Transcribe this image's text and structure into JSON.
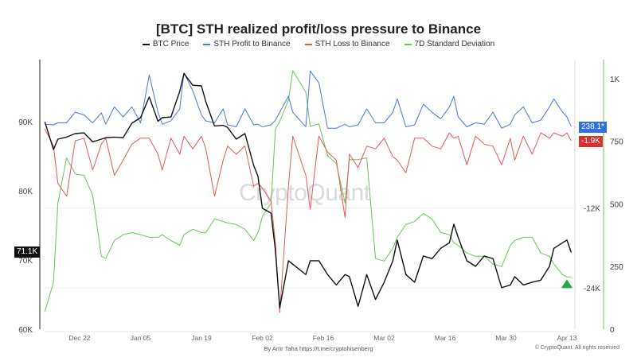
{
  "chart_data": {
    "type": "line",
    "title": "[BTC] STH realized profit/loss pressure to Binance",
    "legend_position": "top",
    "x": [
      "2024-12-14",
      "2024-12-16",
      "2024-12-17",
      "2024-12-19",
      "2024-12-21",
      "2024-12-23",
      "2024-12-25",
      "2024-12-27",
      "2024-12-28",
      "2024-12-30",
      "2025-01-01",
      "2025-01-03",
      "2025-01-05",
      "2025-01-07",
      "2025-01-09",
      "2025-01-10",
      "2025-01-12",
      "2025-01-14",
      "2025-01-15",
      "2025-01-17",
      "2025-01-19",
      "2025-01-20",
      "2025-01-22",
      "2025-01-24",
      "2025-01-25",
      "2025-01-27",
      "2025-01-29",
      "2025-01-31",
      "2025-02-01",
      "2025-02-02",
      "2025-02-04",
      "2025-02-05",
      "2025-02-06",
      "2025-02-08",
      "2025-02-09",
      "2025-02-12",
      "2025-02-13",
      "2025-02-15",
      "2025-02-17",
      "2025-02-19",
      "2025-02-21",
      "2025-02-22",
      "2025-02-24",
      "2025-02-26",
      "2025-02-28",
      "2025-03-02",
      "2025-03-04",
      "2025-03-05",
      "2025-03-07",
      "2025-03-09",
      "2025-03-11",
      "2025-03-13",
      "2025-03-15",
      "2025-03-17",
      "2025-03-18",
      "2025-03-19",
      "2025-03-21",
      "2025-03-23",
      "2025-03-25",
      "2025-03-27",
      "2025-03-29",
      "2025-03-31",
      "2025-04-01",
      "2025-04-03",
      "2025-04-05",
      "2025-04-07",
      "2025-04-09",
      "2025-04-10",
      "2025-04-12",
      "2025-04-13",
      "2025-04-14"
    ],
    "x_ticks": [
      {
        "date": "2024-12-22",
        "label": "Dec 22"
      },
      {
        "date": "2025-01-05",
        "label": "Jan 05"
      },
      {
        "date": "2025-01-19",
        "label": "Jan 19"
      },
      {
        "date": "2025-02-02",
        "label": "Feb 02"
      },
      {
        "date": "2025-02-16",
        "label": "Feb 16"
      },
      {
        "date": "2025-03-02",
        "label": "Mar 02"
      },
      {
        "date": "2025-03-16",
        "label": "Mar 16"
      },
      {
        "date": "2025-03-30",
        "label": "Mar 30"
      },
      {
        "date": "2025-04-13",
        "label": "Apr 13"
      }
    ],
    "axes": {
      "price": {
        "side": "left",
        "ylim": [
          60000,
          99000
        ],
        "ticks": [
          {
            "v": 90000,
            "label": "90K"
          },
          {
            "v": 80000,
            "label": "80K"
          },
          {
            "v": 70000,
            "label": "70K"
          },
          {
            "v": 60000,
            "label": "60K"
          }
        ]
      },
      "flow": {
        "side": "right-inner",
        "ylim": [
          -30200,
          10300
        ],
        "ticks": [
          {
            "v": -12000,
            "label": "-12K"
          },
          {
            "v": -24000,
            "label": "-24K"
          }
        ]
      },
      "stddev": {
        "side": "right-outer",
        "ylim": [
          0,
          1076
        ],
        "ticks": [
          {
            "v": 1000,
            "label": "1K"
          },
          {
            "v": 750,
            "label": "750"
          },
          {
            "v": 500,
            "label": "500"
          },
          {
            "v": 250,
            "label": "250"
          },
          {
            "v": 0,
            "label": "0"
          }
        ]
      }
    },
    "grid": true,
    "series": [
      {
        "name": "BTC Price",
        "axis": "price",
        "color": "#111111",
        "last_label": "71.1K",
        "values": [
          90000,
          86000,
          87500,
          87800,
          88300,
          88400,
          87100,
          87500,
          87700,
          87800,
          87700,
          89800,
          90600,
          93600,
          90100,
          90600,
          90700,
          94400,
          97000,
          95300,
          95200,
          92900,
          89400,
          89500,
          89200,
          87500,
          88300,
          83700,
          82100,
          77500,
          76800,
          71400,
          63100,
          69900,
          69400,
          67900,
          69900,
          69900,
          67900,
          66400,
          67900,
          67600,
          63300,
          67900,
          64300,
          66800,
          69900,
          72900,
          67900,
          66800,
          70600,
          70200,
          71700,
          72500,
          75200,
          73300,
          69900,
          69100,
          70600,
          70200,
          66000,
          66400,
          67600,
          66400,
          66800,
          67100,
          69100,
          71700,
          72500,
          72900,
          71100
        ]
      },
      {
        "name": "STH Profit to Binance",
        "axis": "flow",
        "color": "#4a78d8",
        "last_label": "238.1*",
        "values": [
          600,
          500,
          800,
          800,
          2400,
          2000,
          800,
          2300,
          600,
          3200,
          1700,
          3200,
          800,
          8000,
          2400,
          600,
          1100,
          2900,
          8300,
          5600,
          2000,
          1100,
          800,
          2900,
          500,
          200,
          2900,
          500,
          600,
          200,
          500,
          1200,
          2400,
          4800,
          2400,
          200,
          8600,
          6800,
          0,
          0,
          600,
          200,
          500,
          2900,
          800,
          800,
          2400,
          4400,
          200,
          500,
          3600,
          2400,
          1400,
          3200,
          4800,
          1700,
          200,
          800,
          600,
          2400,
          0,
          600,
          2000,
          3200,
          800,
          1200,
          3200,
          4400,
          2400,
          1700,
          238.1
        ]
      },
      {
        "name": "STH Loss to Binance",
        "axis": "flow",
        "color": "#e05a5a",
        "last_label": "-1.9K",
        "values": [
          -100,
          -2700,
          -8300,
          -10200,
          -1900,
          -1500,
          -6300,
          -2400,
          -1500,
          -7100,
          -4800,
          -2400,
          -1500,
          -1500,
          -3900,
          -6300,
          -1500,
          -3900,
          -1200,
          -3100,
          -1200,
          -3100,
          -10200,
          -4800,
          -2700,
          -3900,
          -2700,
          -8700,
          -8300,
          -9000,
          -11000,
          -17300,
          -27700,
          -8700,
          -1200,
          -7100,
          -12200,
          -1200,
          -3600,
          -4800,
          -13400,
          -3900,
          -5900,
          -2700,
          -3100,
          -1500,
          -4300,
          -4800,
          -6700,
          -1500,
          -1500,
          -2700,
          -3100,
          -700,
          -1500,
          -1200,
          -5500,
          -1200,
          -2400,
          -2700,
          -5500,
          -1500,
          -4800,
          -1200,
          -3900,
          -700,
          -1500,
          -700,
          -1200,
          -700,
          -1900
        ]
      },
      {
        "name": "7D Standard Deviation",
        "axis": "stddev",
        "color": "#6cc35a",
        "values": [
          70,
          187,
          503,
          684,
          620,
          614,
          535,
          291,
          282,
          354,
          377,
          386,
          377,
          367,
          367,
          377,
          354,
          335,
          377,
          399,
          386,
          386,
          440,
          430,
          424,
          418,
          399,
          354,
          386,
          449,
          503,
          798,
          829,
          915,
          1032,
          946,
          810,
          820,
          693,
          661,
          503,
          677,
          677,
          684,
          282,
          272,
          323,
          367,
          418,
          430,
          462,
          440,
          386,
          377,
          345,
          335,
          304,
          291,
          291,
          260,
          250,
          335,
          354,
          367,
          367,
          304,
          291,
          260,
          218,
          209,
          209
        ]
      }
    ],
    "annotations": [
      {
        "type": "triangle-up",
        "color": "#22a845",
        "date": "2025-04-13",
        "axis": "stddev",
        "value": 180
      }
    ]
  },
  "watermark": "CryptoQuant",
  "footer": {
    "credit_prefix": "By Amr Taha",
    "credit_link": "https://t.me/cryptohisenberg",
    "copyright": "© CryptoQuant. All rights reserved"
  }
}
